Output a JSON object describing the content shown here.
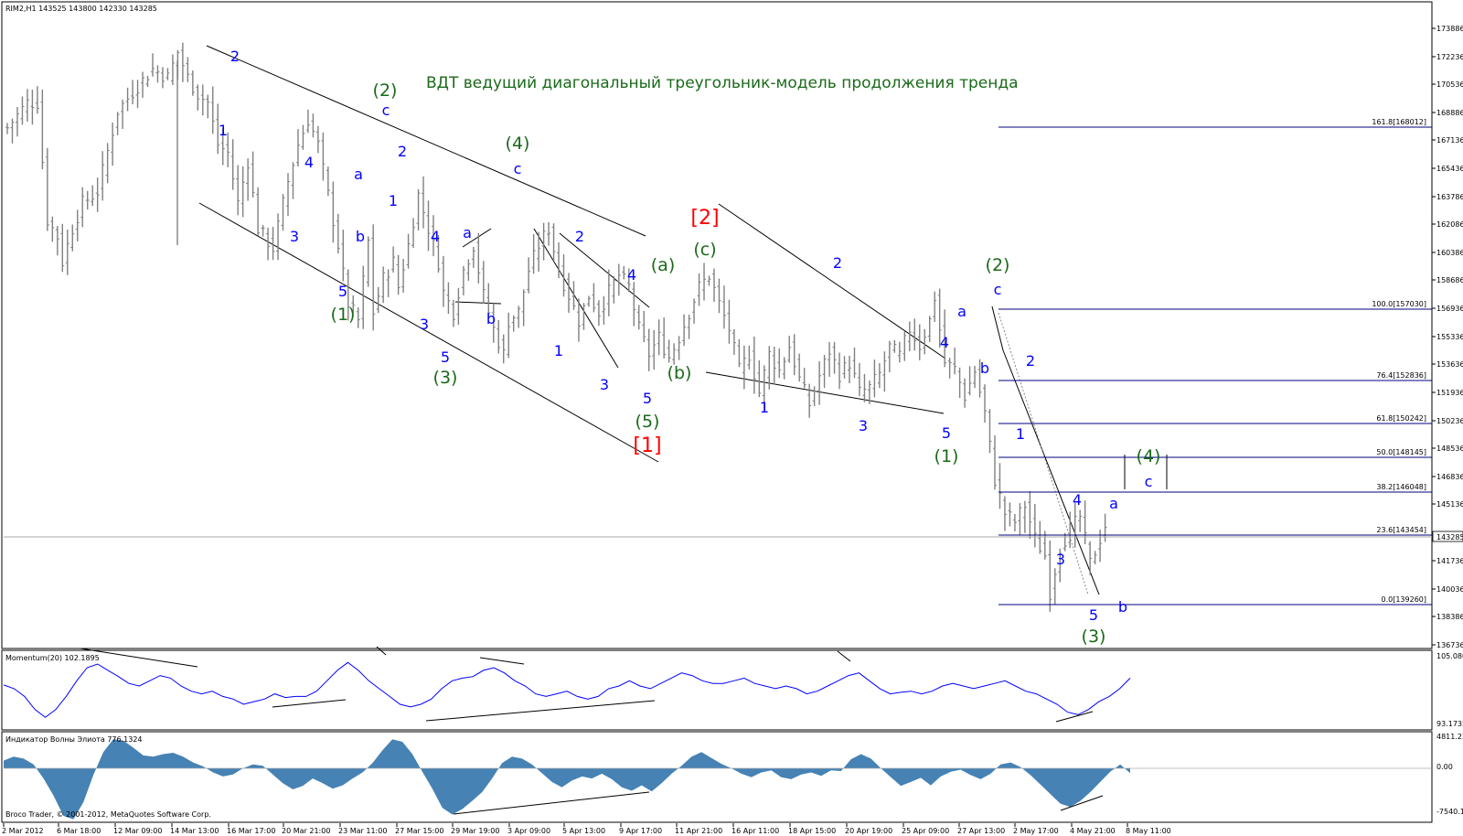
{
  "window": {
    "symbol_header": "RIM2,H1  143525 143800 142330 143285",
    "title": "ВДТ ведущий диагональный треугольник-модель продолжения тренда",
    "copyright": "Broco Trader, © 2001-2012, MetaQuotes Software Corp.",
    "current_price": "143285"
  },
  "colors": {
    "price_bars": "#808080",
    "wave_blue": "#0000ff",
    "wave_green": "#1a6a1a",
    "wave_red": "#ff0000",
    "fib_line": "#000080",
    "momentum": "#0000ff",
    "histogram": "#4682b4",
    "trendline": "#000000"
  },
  "chart_data": [
    {
      "type": "ohlc-bar",
      "panel": "main",
      "symbol": "RIM2",
      "timeframe": "H1",
      "header_ohlc": {
        "open": 143525,
        "high": 143800,
        "low": 142330,
        "close": 143285
      },
      "ylim": [
        136000,
        174400
      ],
      "y_ticks": [
        "173886",
        "172236",
        "170536",
        "168886",
        "167136",
        "165436",
        "163786",
        "162086",
        "160386",
        "158686",
        "156936",
        "155336",
        "153636",
        "151936",
        "150236",
        "148536",
        "146836",
        "145136",
        "143285",
        "141736",
        "140036",
        "138386",
        "136736"
      ],
      "x_ticks": [
        "2 Mar 2012",
        "6 Mar 18:00",
        "12 Mar 09:00",
        "14 Mar 13:00",
        "16 Mar 17:00",
        "20 Mar 21:00",
        "23 Mar 11:00",
        "27 Mar 15:00",
        "29 Mar 19:00",
        "3 Apr 09:00",
        "5 Apr 13:00",
        "9 Apr 17:00",
        "11 Apr 21:00",
        "16 Apr 11:00",
        "18 Apr 15:00",
        "20 Apr 19:00",
        "25 Apr 09:00",
        "27 Apr 13:00",
        "2 May 17:00",
        "4 May 21:00",
        "8 May 11:00"
      ],
      "bar_count": 225,
      "price_path_anchors": [
        [
          0,
          167000
        ],
        [
          4,
          168500
        ],
        [
          6,
          168500
        ],
        [
          8,
          161500
        ],
        [
          10,
          160500
        ],
        [
          11,
          159000
        ],
        [
          13,
          161000
        ],
        [
          15,
          162500
        ],
        [
          18,
          163200
        ],
        [
          22,
          168000
        ],
        [
          26,
          169500
        ],
        [
          29,
          170500
        ],
        [
          32,
          170000
        ],
        [
          34,
          171500
        ],
        [
          36,
          170000
        ],
        [
          38,
          169000
        ],
        [
          40,
          168500
        ],
        [
          42,
          166000
        ],
        [
          44,
          165500
        ],
        [
          46,
          162500
        ],
        [
          48,
          165000
        ],
        [
          50,
          161000
        ],
        [
          53,
          159800
        ],
        [
          56,
          163800
        ],
        [
          58,
          166000
        ],
        [
          60,
          167500
        ],
        [
          62,
          166000
        ],
        [
          64,
          163000
        ],
        [
          66,
          160000
        ],
        [
          68,
          156500
        ],
        [
          70,
          155500
        ],
        [
          72,
          160200
        ],
        [
          73,
          156000
        ],
        [
          75,
          158000
        ],
        [
          77,
          159000
        ],
        [
          78,
          157500
        ],
        [
          80,
          160000
        ],
        [
          82,
          163000
        ],
        [
          84,
          161000
        ],
        [
          86,
          159000
        ],
        [
          87,
          157200
        ],
        [
          89,
          156000
        ],
        [
          91,
          158500
        ],
        [
          93,
          160000
        ],
        [
          95,
          157000
        ],
        [
          97,
          155000
        ],
        [
          99,
          153500
        ],
        [
          100,
          155500
        ],
        [
          102,
          156000
        ],
        [
          104,
          158500
        ],
        [
          106,
          160000
        ],
        [
          108,
          161000
        ],
        [
          110,
          158500
        ],
        [
          112,
          157000
        ],
        [
          114,
          155500
        ],
        [
          116,
          157000
        ],
        [
          118,
          156000
        ],
        [
          120,
          157200
        ],
        [
          122,
          158200
        ],
        [
          124,
          157500
        ],
        [
          126,
          155000
        ],
        [
          128,
          153500
        ],
        [
          130,
          154500
        ],
        [
          132,
          153300
        ],
        [
          134,
          154500
        ],
        [
          136,
          156000
        ],
        [
          138,
          157500
        ],
        [
          140,
          158200
        ],
        [
          142,
          156500
        ],
        [
          144,
          155000
        ],
        [
          146,
          152500
        ],
        [
          148,
          153500
        ],
        [
          150,
          151200
        ],
        [
          152,
          153500
        ],
        [
          154,
          152500
        ],
        [
          156,
          154000
        ],
        [
          158,
          152000
        ],
        [
          160,
          150500
        ],
        [
          162,
          152200
        ],
        [
          164,
          153700
        ],
        [
          166,
          152300
        ],
        [
          168,
          153000
        ],
        [
          170,
          151200
        ],
        [
          172,
          151500
        ],
        [
          174,
          152300
        ],
        [
          176,
          153900
        ],
        [
          178,
          153400
        ],
        [
          180,
          155000
        ],
        [
          182,
          154000
        ],
        [
          184,
          155500
        ],
        [
          185,
          156900
        ],
        [
          187,
          153000
        ],
        [
          189,
          152600
        ],
        [
          191,
          151000
        ],
        [
          193,
          152500
        ],
        [
          195,
          150000
        ],
        [
          197,
          146000
        ],
        [
          199,
          144000
        ],
        [
          201,
          143500
        ],
        [
          203,
          144500
        ],
        [
          205,
          142500
        ],
        [
          207,
          141500
        ],
        [
          208,
          139300
        ],
        [
          210,
          142000
        ],
        [
          212,
          143000
        ],
        [
          214,
          143800
        ],
        [
          216,
          141000
        ],
        [
          218,
          142500
        ],
        [
          219,
          143300
        ]
      ],
      "wave_labels": [
        {
          "text": "2",
          "color": "blue"
        },
        {
          "text": "1",
          "color": "blue"
        },
        {
          "text": "4",
          "color": "blue"
        },
        {
          "text": "a",
          "color": "blue"
        },
        {
          "text": "3",
          "color": "blue"
        },
        {
          "text": "b",
          "color": "blue"
        },
        {
          "text": "5",
          "color": "blue"
        },
        {
          "text": "(1)",
          "color": "green"
        },
        {
          "text": "(2)",
          "color": "green"
        },
        {
          "text": "c",
          "color": "blue"
        },
        {
          "text": "2",
          "color": "blue"
        },
        {
          "text": "1",
          "color": "blue"
        },
        {
          "text": "4",
          "color": "blue"
        },
        {
          "text": "a",
          "color": "blue"
        },
        {
          "text": "b",
          "color": "blue"
        },
        {
          "text": "3",
          "color": "blue"
        },
        {
          "text": "5",
          "color": "blue"
        },
        {
          "text": "(3)",
          "color": "green"
        },
        {
          "text": "(4)",
          "color": "green"
        },
        {
          "text": "c",
          "color": "blue"
        },
        {
          "text": "2",
          "color": "blue"
        },
        {
          "text": "1",
          "color": "blue"
        },
        {
          "text": "3",
          "color": "blue"
        },
        {
          "text": "4",
          "color": "blue"
        },
        {
          "text": "5",
          "color": "blue"
        },
        {
          "text": "(5)",
          "color": "green"
        },
        {
          "text": "[1]",
          "color": "red"
        },
        {
          "text": "(a)",
          "color": "green"
        },
        {
          "text": "(b)",
          "color": "green"
        },
        {
          "text": "(c)",
          "color": "green"
        },
        {
          "text": "[2]",
          "color": "red"
        },
        {
          "text": "2",
          "color": "blue"
        },
        {
          "text": "1",
          "color": "blue"
        },
        {
          "text": "3",
          "color": "blue"
        },
        {
          "text": "4",
          "color": "blue"
        },
        {
          "text": "5",
          "color": "blue"
        },
        {
          "text": "(1)",
          "color": "green"
        },
        {
          "text": "a",
          "color": "blue"
        },
        {
          "text": "b",
          "color": "blue"
        },
        {
          "text": "(2)",
          "color": "green"
        },
        {
          "text": "c",
          "color": "blue"
        },
        {
          "text": "2",
          "color": "blue"
        },
        {
          "text": "1",
          "color": "blue"
        },
        {
          "text": "4",
          "color": "blue"
        },
        {
          "text": "3",
          "color": "blue"
        },
        {
          "text": "5",
          "color": "blue"
        },
        {
          "text": "(3)",
          "color": "green"
        },
        {
          "text": "a",
          "color": "blue"
        },
        {
          "text": "b",
          "color": "blue"
        },
        {
          "text": "(4)",
          "color": "green"
        },
        {
          "text": "c",
          "color": "blue"
        }
      ],
      "fibonacci_levels": [
        {
          "label": "161.8[168012]",
          "price": 168012
        },
        {
          "label": "100.0[157030]",
          "price": 157030
        },
        {
          "label": "76.4[152836]",
          "price": 152836
        },
        {
          "label": "61.8[150242]",
          "price": 150242
        },
        {
          "label": "50.0[148145]",
          "price": 148145
        },
        {
          "label": "38.2[146048]",
          "price": 146048
        },
        {
          "label": "23.6[143454]",
          "price": 143454
        },
        {
          "label": "0.0[139260]",
          "price": 139260
        }
      ]
    },
    {
      "type": "line",
      "panel": "momentum",
      "title": "Momentum(20) 102.1895",
      "y_ticks": [
        "105.080",
        "93.1735"
      ],
      "series": [
        {
          "values": [
            100.2,
            99.5,
            98.0,
            95.5,
            94.0,
            95.5,
            98.0,
            101.0,
            103.5,
            104.2,
            103.0,
            101.8,
            100.5,
            100.0,
            101.0,
            102.0,
            101.5,
            100.0,
            99.0,
            98.5,
            99.0,
            98.0,
            97.5,
            96.5,
            97.0,
            97.5,
            98.5,
            97.8,
            98.0,
            98.0,
            99.0,
            101.0,
            103.0,
            104.5,
            103.0,
            101.0,
            99.5,
            98.0,
            96.5,
            96.0,
            96.5,
            97.5,
            99.5,
            101.0,
            101.5,
            101.8,
            103.0,
            103.5,
            102.5,
            101.0,
            100.0,
            98.5,
            98.0,
            98.5,
            99.0,
            98.0,
            97.5,
            98.0,
            99.5,
            100.0,
            101.0,
            100.0,
            99.5,
            100.5,
            101.5,
            102.5,
            102.0,
            101.0,
            100.5,
            100.5,
            101.0,
            101.5,
            100.5,
            100.0,
            99.5,
            100.0,
            99.5,
            98.5,
            99.0,
            100.0,
            101.0,
            102.0,
            102.5,
            101.0,
            99.5,
            98.5,
            98.8,
            99.0,
            98.5,
            99.0,
            100.0,
            100.5,
            100.0,
            99.5,
            100.0,
            100.5,
            101.0,
            100.0,
            99.0,
            98.5,
            97.5,
            96.5,
            95.0,
            94.5,
            95.5,
            97.0,
            98.0,
            99.5,
            101.5
          ]
        }
      ]
    },
    {
      "type": "area",
      "panel": "elliott_oscillator",
      "title": "Индикатор Волны Элиота 776.1324",
      "y_ticks": [
        "4811.22",
        "0.00",
        "-7540.19"
      ],
      "series": [
        {
          "values": [
            1200,
            1800,
            1500,
            600,
            -1500,
            -4000,
            -7000,
            -7500,
            -5000,
            -1000,
            2500,
            4500,
            4300,
            3200,
            2000,
            1800,
            2200,
            2400,
            1800,
            900,
            300,
            -600,
            -1200,
            -900,
            0,
            600,
            400,
            -900,
            -2200,
            -3100,
            -2600,
            -1500,
            -2200,
            -3000,
            -2500,
            -1500,
            -600,
            800,
            2800,
            4500,
            4100,
            2200,
            -500,
            -3000,
            -5800,
            -6800,
            -6000,
            -4800,
            -3500,
            -1500,
            800,
            1800,
            1500,
            600,
            -700,
            -2000,
            -2800,
            -1800,
            -1200,
            -1500,
            -800,
            -1600,
            -2800,
            -3300,
            -2500,
            -3400,
            -2200,
            -800,
            400,
            1800,
            2500,
            1600,
            700,
            0,
            -800,
            -1300,
            -600,
            -300,
            -1300,
            -1600,
            -900,
            -600,
            -1100,
            -300,
            -400,
            1400,
            2200,
            1500,
            0,
            -1300,
            -2600,
            -2000,
            -1400,
            -2500,
            -1200,
            -500,
            -200,
            -1000,
            -1600,
            -800,
            600,
            900,
            200,
            -1000,
            -2400,
            -3800,
            -5200,
            -5700,
            -4800,
            -3500,
            -2000,
            -500,
            600,
            -700
          ]
        }
      ]
    }
  ]
}
